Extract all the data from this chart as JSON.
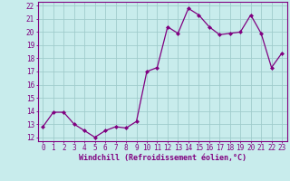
{
  "x": [
    0,
    1,
    2,
    3,
    4,
    5,
    6,
    7,
    8,
    9,
    10,
    11,
    12,
    13,
    14,
    15,
    16,
    17,
    18,
    19,
    20,
    21,
    22,
    23
  ],
  "y": [
    12.8,
    13.9,
    13.9,
    13.0,
    12.5,
    12.0,
    12.5,
    12.8,
    12.7,
    13.2,
    17.0,
    17.3,
    20.4,
    19.9,
    21.8,
    21.3,
    20.4,
    19.8,
    19.9,
    20.0,
    21.3,
    19.9,
    17.3,
    18.4
  ],
  "line_color": "#800080",
  "marker_color": "#800080",
  "bg_color": "#c8ecec",
  "grid_color": "#a0cccc",
  "axis_label_color": "#800080",
  "tick_color": "#800080",
  "spine_color": "#800080",
  "xlabel": "Windchill (Refroidissement éolien,°C)",
  "ylabel_ticks": [
    12,
    13,
    14,
    15,
    16,
    17,
    18,
    19,
    20,
    21,
    22
  ],
  "ylim": [
    11.7,
    22.3
  ],
  "xlim": [
    -0.5,
    23.5
  ],
  "tick_fontsize": 5.5,
  "xlabel_fontsize": 6.0
}
